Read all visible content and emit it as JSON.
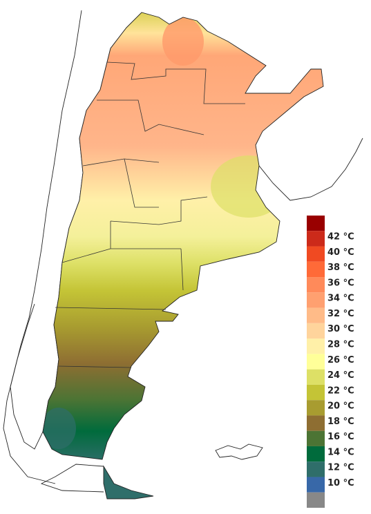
{
  "legend": {
    "labels": [
      "42 °C",
      "40 °C",
      "38 °C",
      "36 °C",
      "34 °C",
      "32 °C",
      "30 °C",
      "28 °C",
      "26 °C",
      "24 °C",
      "22 °C",
      "20 °C",
      "18 °C",
      "16 °C",
      "14 °C",
      "12 °C",
      "10 °C"
    ],
    "colors": [
      "#990000",
      "#cc2a1a",
      "#f04a22",
      "#ff6a38",
      "#ff8a5a",
      "#ffa070",
      "#ffbb88",
      "#ffd49c",
      "#fff0a8",
      "#ffff99",
      "#dde066",
      "#c4c436",
      "#a89c30",
      "#8e6e32",
      "#4c7434",
      "#006b3c",
      "#2f6e6a",
      "#3868a8",
      "#888888"
    ]
  }
}
